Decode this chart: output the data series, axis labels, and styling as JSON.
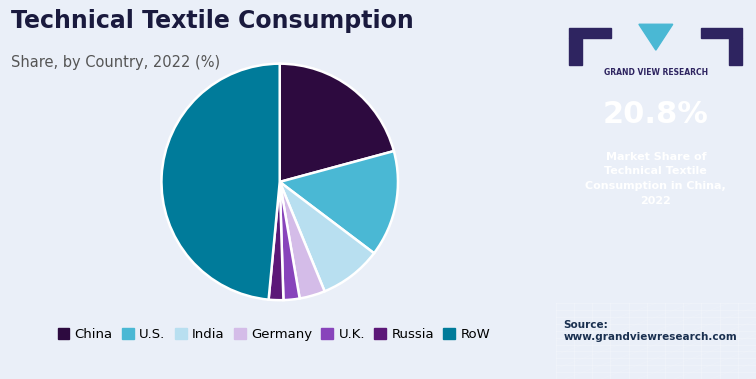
{
  "title": "Technical Textile Consumption",
  "subtitle": "Share, by Country, 2022 (%)",
  "labels": [
    "China",
    "U.S.",
    "India",
    "Germany",
    "U.K.",
    "Russia",
    "RoW"
  ],
  "values": [
    20.8,
    14.5,
    8.5,
    3.5,
    2.2,
    2.0,
    48.5
  ],
  "colors": [
    "#2d0a3f",
    "#4ab8d4",
    "#b8dff0",
    "#d4bce8",
    "#8844bb",
    "#5c1878",
    "#007b9a"
  ],
  "bg_color": "#eaeff8",
  "sidebar_color": "#2e2460",
  "sidebar_bottom_color": "#7ec8e0",
  "title_color": "#1a1a3e",
  "subtitle_color": "#555555",
  "legend_fontsize": 9.5,
  "title_fontsize": 17,
  "subtitle_fontsize": 10.5,
  "sidebar_text": "20.8%",
  "sidebar_subtext": "Market Share of\nTechnical Textile\nConsumption in China,\n2022",
  "source_text": "Source:\nwww.grandviewresearch.com"
}
